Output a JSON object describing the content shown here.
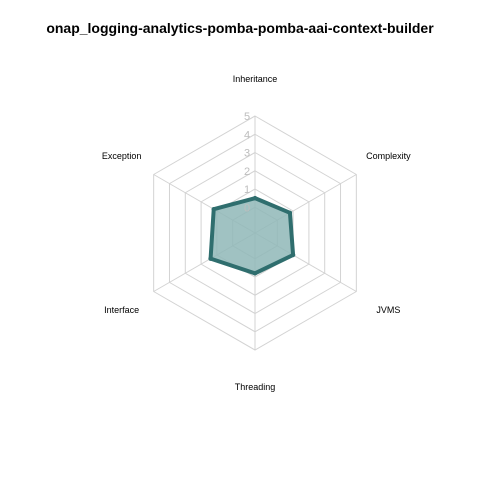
{
  "chart_data": {
    "type": "radar",
    "title": "onap_logging-analytics-pomba-pomba-aai-context-builder",
    "axes": [
      "Inheritance",
      "Complexity",
      "JVMS",
      "Threading",
      "Interface",
      "Exception"
    ],
    "ticks": [
      "0",
      "1",
      "2",
      "3",
      "4",
      "5"
    ],
    "range": [
      0,
      5
    ],
    "series": [
      {
        "values": [
          0.5,
          0.8,
          1.0,
          0.8,
          1.4,
          1.2
        ]
      }
    ],
    "colors": {
      "line": "#2f6e6e",
      "fill": "#8fb7b7",
      "grid": "#d3d3d3"
    }
  }
}
